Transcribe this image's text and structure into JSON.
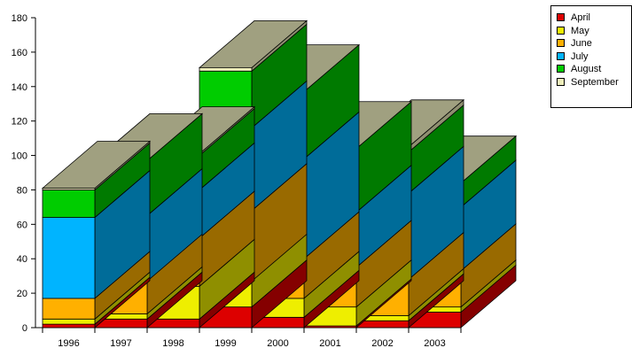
{
  "chart_data": {
    "type": "bar",
    "stacked": true,
    "style": "3d",
    "categories": [
      "1996",
      "1997",
      "1998",
      "1999",
      "2000",
      "2001",
      "2002",
      "2003"
    ],
    "series": [
      {
        "name": "April",
        "color": "#dd0000",
        "values": [
          2,
          5,
          5,
          12,
          6,
          1,
          4,
          9
        ]
      },
      {
        "name": "May",
        "color": "#eeee00",
        "values": [
          3,
          3,
          19,
          15,
          11,
          11,
          3,
          3
        ]
      },
      {
        "name": "June",
        "color": "#ffb000",
        "values": [
          12,
          19,
          28,
          41,
          23,
          23,
          21,
          21
        ]
      },
      {
        "name": "July",
        "color": "#00b4ff",
        "values": [
          47,
          38,
          28,
          48,
          58,
          32,
          50,
          37
        ]
      },
      {
        "name": "August",
        "color": "#00cc00",
        "values": [
          16,
          32,
          20,
          33,
          39,
          37,
          24,
          14
        ]
      },
      {
        "name": "September",
        "color": "#eeeebb",
        "values": [
          1,
          0,
          1,
          2,
          0,
          0,
          3,
          0
        ]
      }
    ],
    "ylim": [
      0,
      180
    ],
    "yticks": [
      0,
      20,
      40,
      60,
      80,
      100,
      120,
      140,
      160,
      180
    ],
    "top_color": "#a0a080",
    "legend_position": "top-right"
  }
}
